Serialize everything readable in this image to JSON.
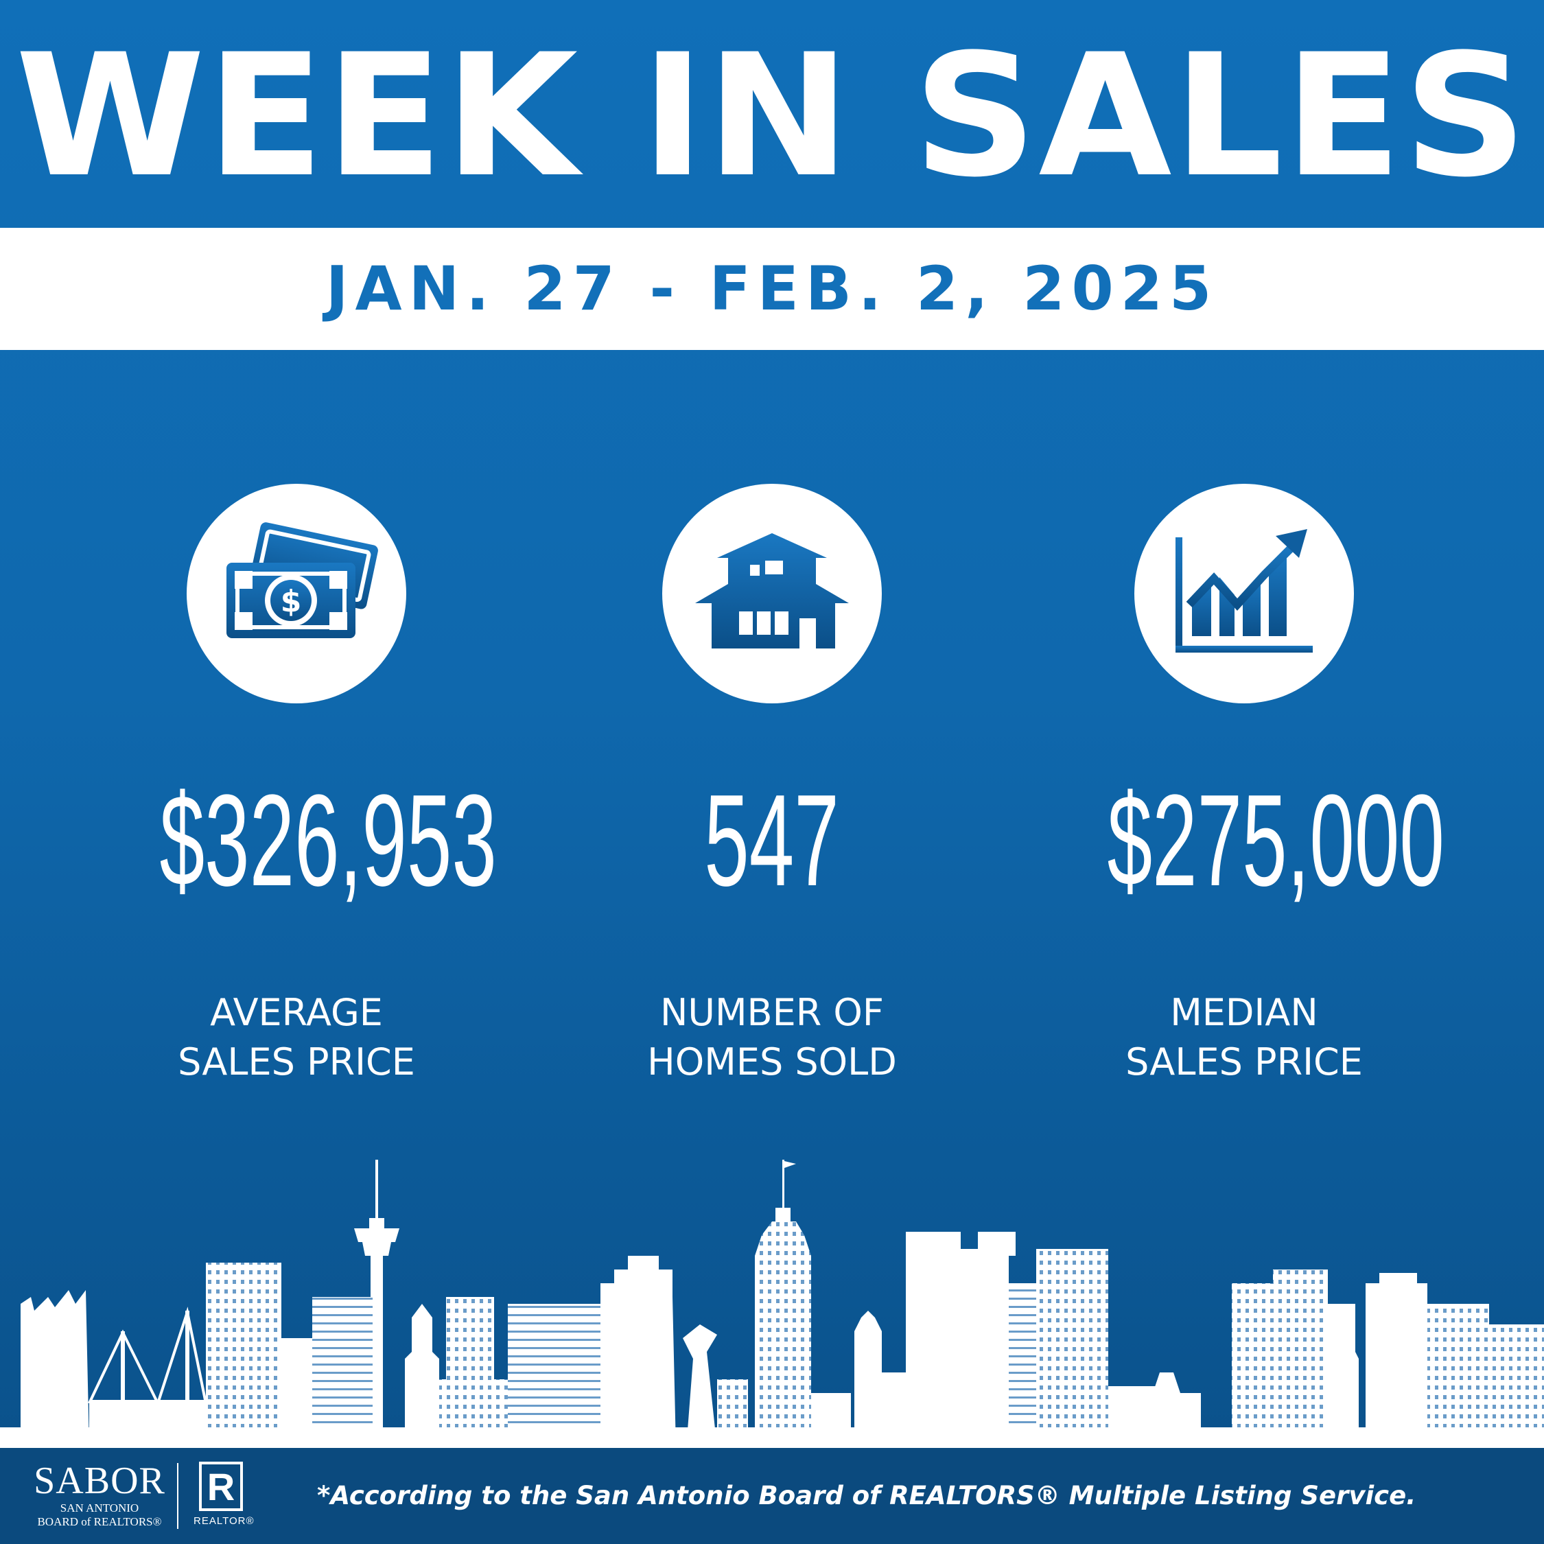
{
  "header": {
    "title": "WEEK IN SALES",
    "date_range": "JAN. 27 - FEB. 2, 2025"
  },
  "stats": [
    {
      "icon": "money-icon",
      "value": "$326,953",
      "label_line1": "AVERAGE",
      "label_line2": "SALES PRICE"
    },
    {
      "icon": "house-icon",
      "value": "547",
      "label_line1": "NUMBER OF",
      "label_line2": "HOMES SOLD"
    },
    {
      "icon": "growth-chart-icon",
      "value": "$275,000",
      "label_line1": "MEDIAN",
      "label_line2": "SALES PRICE"
    }
  ],
  "footer": {
    "sabor_mark": "SABOR",
    "sabor_line1": "SAN ANTONIO",
    "sabor_line2": "BOARD of REALTORS®",
    "realtor_letter": "R",
    "realtor_word": "REALTOR®",
    "disclaimer": "*According to the San Antonio Board of REALTORS® Multiple Listing Service."
  },
  "colors": {
    "background_blue": "#106fb8",
    "footer_navy": "#0b4a7e",
    "white": "#ffffff",
    "date_text_blue": "#1270b9"
  }
}
